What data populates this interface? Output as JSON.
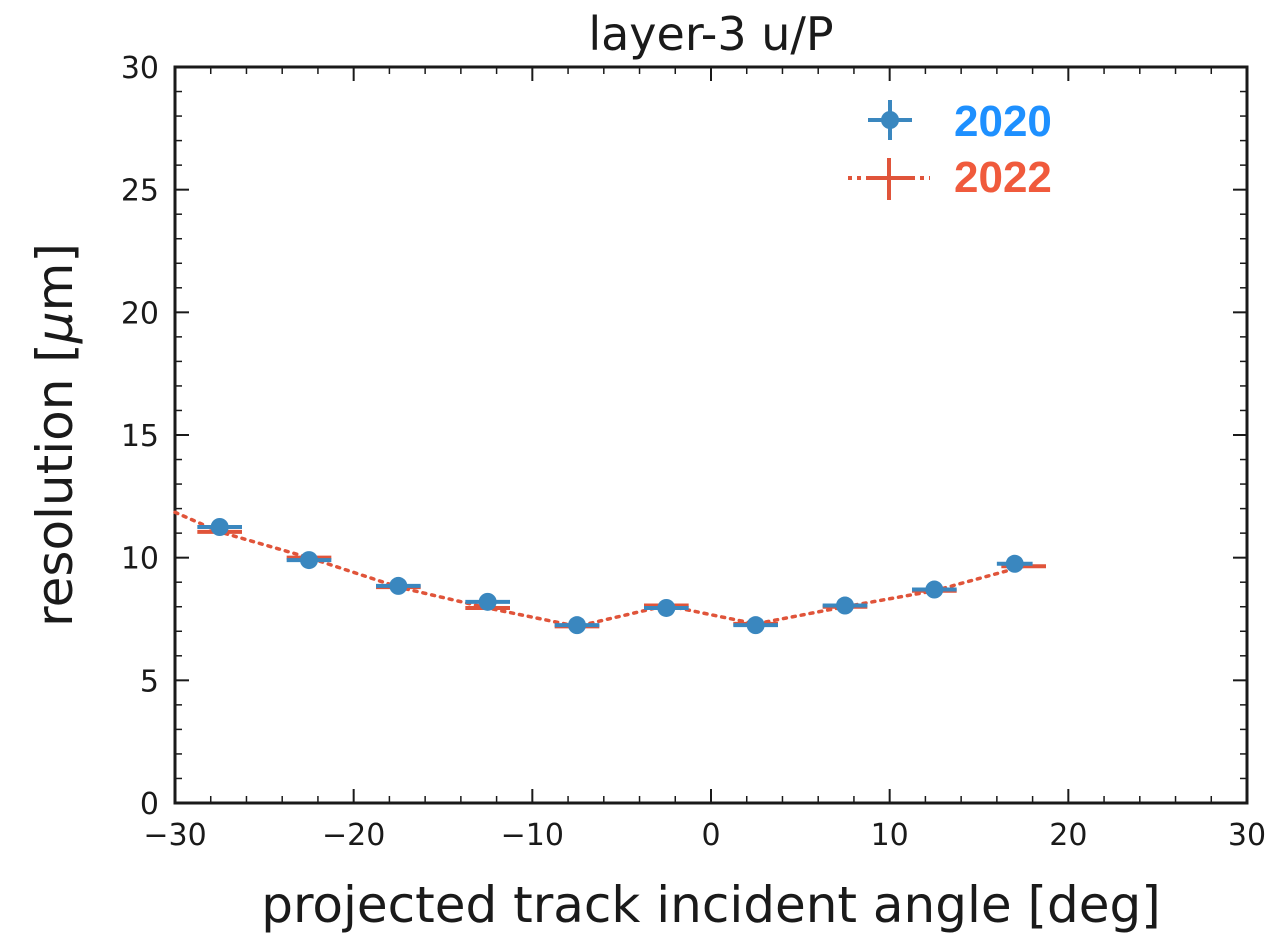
{
  "chart_data": {
    "type": "scatter",
    "title": "layer-3 u/P",
    "xlabel": "projected track incident angle [deg]",
    "ylabel_prefix": "resolution [",
    "ylabel_mu": "μ",
    "ylabel_suffix": "m]",
    "xlim": [
      -30,
      30
    ],
    "ylim": [
      0,
      30
    ],
    "xticks": [
      -30,
      -20,
      -10,
      0,
      10,
      20,
      30
    ],
    "xtick_labels": [
      "−30",
      "−20",
      "−10",
      "0",
      "10",
      "20",
      "30"
    ],
    "yticks": [
      0,
      5,
      10,
      15,
      20,
      25,
      30
    ],
    "ytick_labels": [
      "0",
      "5",
      "10",
      "15",
      "20",
      "25",
      "30"
    ],
    "grid": false,
    "legend_position": "top-right",
    "series": [
      {
        "name": "2020",
        "style": "markers with error bars",
        "color": "#3a87bf",
        "label_color": "#1e90ff",
        "points": [
          {
            "x": -27.5,
            "y": 11.25,
            "xerr": 1.25
          },
          {
            "x": -22.5,
            "y": 9.9,
            "xerr": 1.25
          },
          {
            "x": -17.5,
            "y": 8.85,
            "xerr": 1.25
          },
          {
            "x": -12.5,
            "y": 8.2,
            "xerr": 1.25
          },
          {
            "x": -7.5,
            "y": 7.25,
            "xerr": 1.25
          },
          {
            "x": -2.5,
            "y": 7.95,
            "xerr": 1.25
          },
          {
            "x": 2.5,
            "y": 7.25,
            "xerr": 1.25
          },
          {
            "x": 7.5,
            "y": 8.05,
            "xerr": 1.25
          },
          {
            "x": 12.5,
            "y": 8.7,
            "xerr": 1.25
          },
          {
            "x": 17.0,
            "y": 9.75,
            "xerr": 1.0
          }
        ]
      },
      {
        "name": "2022",
        "style": "dotted line with horizontal bars",
        "color": "#e0543a",
        "label_color": "#f05a3c",
        "points": [
          {
            "x": -30.0,
            "y": 11.85,
            "xerr": 0
          },
          {
            "x": -27.5,
            "y": 11.05,
            "xerr": 1.25
          },
          {
            "x": -22.5,
            "y": 10.0,
            "xerr": 1.25
          },
          {
            "x": -17.5,
            "y": 8.8,
            "xerr": 1.25
          },
          {
            "x": -12.5,
            "y": 7.95,
            "xerr": 1.25
          },
          {
            "x": -7.5,
            "y": 7.2,
            "xerr": 1.25
          },
          {
            "x": -2.5,
            "y": 8.05,
            "xerr": 1.25
          },
          {
            "x": 2.5,
            "y": 7.3,
            "xerr": 1.25
          },
          {
            "x": 7.5,
            "y": 8.0,
            "xerr": 1.25
          },
          {
            "x": 12.5,
            "y": 8.65,
            "xerr": 1.25
          },
          {
            "x": 17.5,
            "y": 9.65,
            "xerr": 1.25
          }
        ]
      }
    ]
  }
}
